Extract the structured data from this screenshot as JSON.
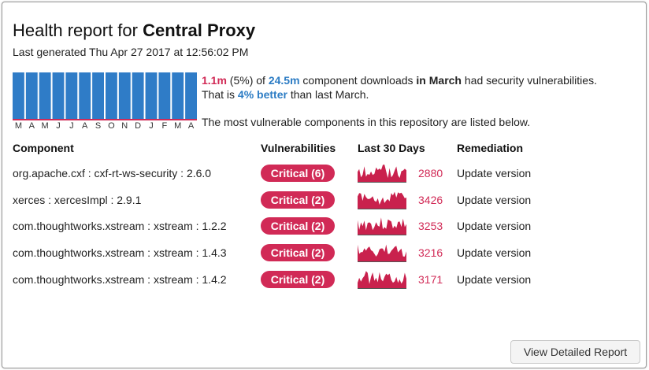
{
  "header": {
    "title_prefix": "Health report for ",
    "title_repo": "Central Proxy",
    "generated": "Last generated Thu Apr 27 2017 at 12:56:02 PM"
  },
  "trend": {
    "months": [
      "M",
      "A",
      "M",
      "J",
      "J",
      "A",
      "S",
      "O",
      "N",
      "D",
      "J",
      "F",
      "M",
      "A"
    ],
    "vulnerable_fraction": [
      0.05,
      0.05,
      0.05,
      0.05,
      0.05,
      0.05,
      0.05,
      0.05,
      0.05,
      0.05,
      0.05,
      0.05,
      0.05,
      0.05
    ],
    "bar_color": "#2f7cc7",
    "baseline_color": "#cf2b57"
  },
  "summary": {
    "vuln_count": "1.1m",
    "vuln_pct": " (5%) of ",
    "total": "24.5m",
    "mid": " component downloads ",
    "in_word": "in ",
    "month": "March",
    "end": " had security vulnerabilities.",
    "line2_pre": "That is ",
    "improvement": "4% better",
    "line2_post": " than last March.",
    "listed": "The most vulnerable components in this repository are listed below."
  },
  "table": {
    "headers": [
      "Component",
      "Vulnerabilities",
      "Last 30 Days",
      "Remediation"
    ],
    "rows": [
      {
        "component": "org.apache.cxf : cxf-rt-ws-security : 2.6.0",
        "vulnerabilities": "Critical (6)",
        "downloads": "2880",
        "remediation": "Update version"
      },
      {
        "component": "xerces : xercesImpl : 2.9.1",
        "vulnerabilities": "Critical (2)",
        "downloads": "3426",
        "remediation": "Update version"
      },
      {
        "component": "com.thoughtworks.xstream : xstream : 1.2.2",
        "vulnerabilities": "Critical (2)",
        "downloads": "3253",
        "remediation": "Update version"
      },
      {
        "component": "com.thoughtworks.xstream : xstream : 1.4.3",
        "vulnerabilities": "Critical (2)",
        "downloads": "3216",
        "remediation": "Update version"
      },
      {
        "component": "com.thoughtworks.xstream : xstream : 1.4.2",
        "vulnerabilities": "Critical (2)",
        "downloads": "3171",
        "remediation": "Update version"
      }
    ]
  },
  "actions": {
    "view_report": "View Detailed Report"
  },
  "colors": {
    "critical": "#d12a56",
    "link_blue": "#2c7cc4",
    "spark": "#c9214d"
  }
}
